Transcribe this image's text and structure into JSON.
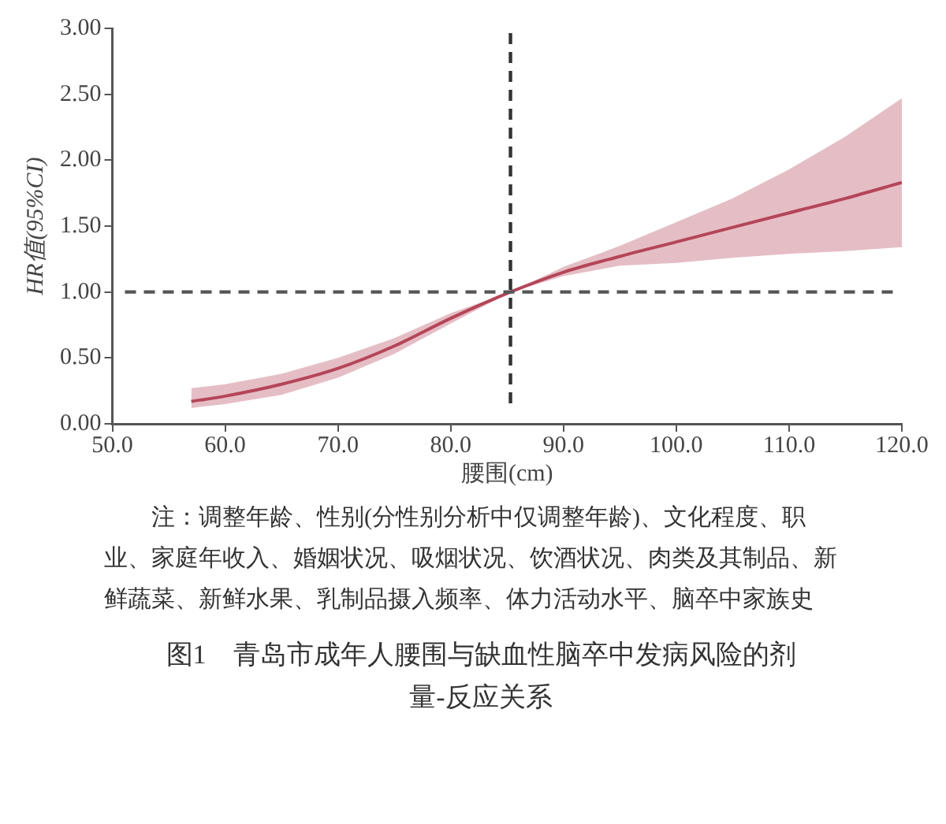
{
  "chart_data": {
    "type": "line",
    "title": "图1　青岛市成年人腰围与缺血性脑卒中发病风险的剂量-反应关系",
    "xlabel": "腰围(cm)",
    "ylabel": "HR值(95%CI)",
    "x": [
      57,
      60,
      65,
      70,
      75,
      80,
      85.3,
      90,
      95,
      100,
      105,
      110,
      115,
      120
    ],
    "series": [
      {
        "color": "#b5455a",
        "values": [
          0.17,
          0.21,
          0.3,
          0.42,
          0.59,
          0.8,
          1.0,
          1.15,
          1.27,
          1.38,
          1.49,
          1.6,
          1.71,
          1.83
        ],
        "lower": [
          0.12,
          0.15,
          0.22,
          0.35,
          0.53,
          0.76,
          1.0,
          1.12,
          1.2,
          1.22,
          1.26,
          1.29,
          1.31,
          1.34
        ],
        "upper": [
          0.27,
          0.3,
          0.38,
          0.5,
          0.65,
          0.84,
          1.0,
          1.19,
          1.35,
          1.53,
          1.71,
          1.93,
          2.18,
          2.47
        ]
      }
    ],
    "xlim": [
      50,
      120
    ],
    "xticks": [
      {
        "value": 50,
        "label": "50.0"
      },
      {
        "value": 60,
        "label": "60.0"
      },
      {
        "value": 70,
        "label": "70.0"
      },
      {
        "value": 80,
        "label": "80.0"
      },
      {
        "value": 90,
        "label": "90.0"
      },
      {
        "value": 100,
        "label": "100.0"
      },
      {
        "value": 110,
        "label": "110.0"
      },
      {
        "value": 120,
        "label": "120.0"
      }
    ],
    "ylim": [
      0,
      3
    ],
    "yticks": [
      {
        "value": 0,
        "label": "0.00"
      },
      {
        "value": 0.5,
        "label": "0.50"
      },
      {
        "value": 1,
        "label": "1.00"
      },
      {
        "value": 1.5,
        "label": "1.50"
      },
      {
        "value": 2,
        "label": "2.00"
      },
      {
        "value": 2.5,
        "label": "2.50"
      },
      {
        "value": 3,
        "label": "3.00"
      }
    ],
    "ref_lines": [
      {
        "axis": "y",
        "value": 1,
        "line_style": "dashed",
        "color": "#555555"
      },
      {
        "axis": "x",
        "value": 85.3,
        "line_style": "dashed",
        "color": "#333333"
      }
    ],
    "annotations": [
      "注：调整年龄、性别(分性别分析中仅调整年龄)、文化程度、职业、家庭年收入、婚姻状况、吸烟状况、饮酒状况、肉类及其制品、新鲜蔬菜、新鲜水果、乳制品摄入频率、体力活动水平、脑卒中家族史"
    ],
    "grid": false,
    "legend": false,
    "marker": "none",
    "line_style": "solid"
  }
}
